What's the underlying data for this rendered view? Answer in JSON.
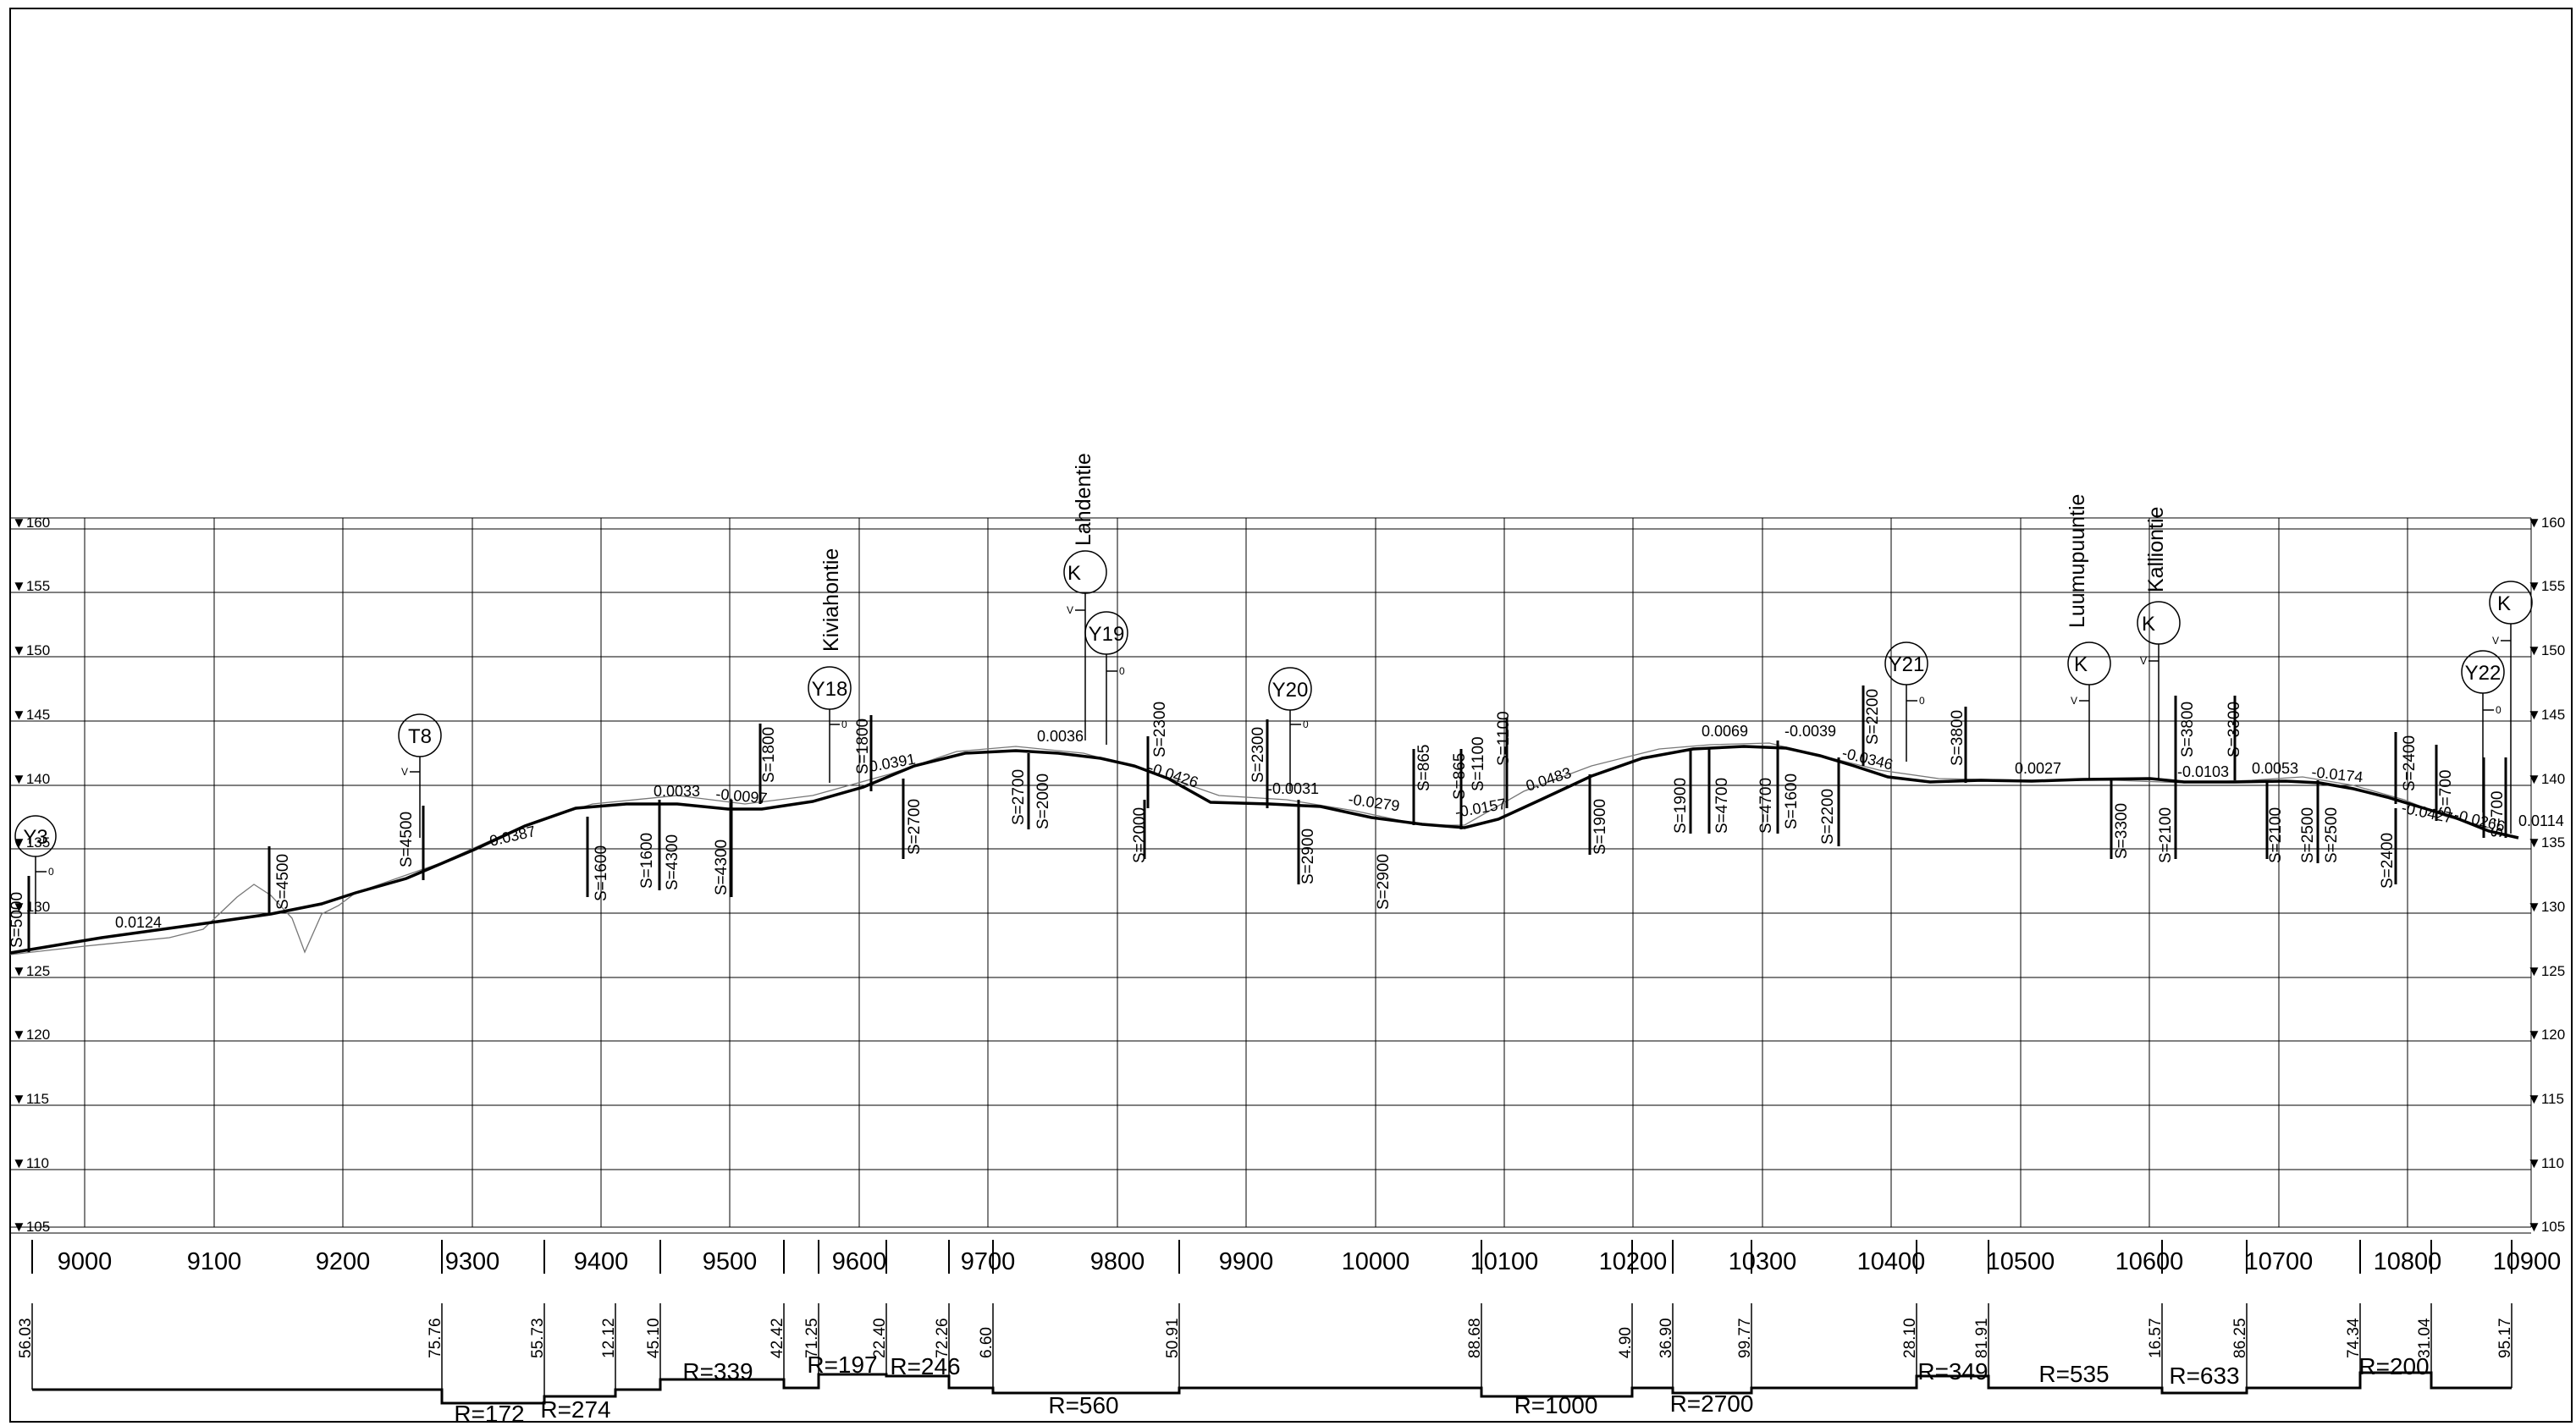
{
  "elevation_labels": [
    "160",
    "155",
    "150",
    "145",
    "140",
    "135",
    "130",
    "125",
    "120",
    "115",
    "110",
    "105"
  ],
  "station_labels": [
    "9000",
    "9100",
    "9200",
    "9300",
    "9400",
    "9500",
    "9600",
    "9700",
    "9800",
    "9900",
    "10000",
    "10100",
    "10200",
    "10300",
    "10400",
    "10500",
    "10600",
    "10700",
    "10800",
    "10900"
  ],
  "road_names": [
    "Lahdentie",
    "Kiviahontie",
    "Luumupuuntie",
    "Kalliontie"
  ],
  "markers": [
    {
      "label": "Y3",
      "sub": "0"
    },
    {
      "label": "T8",
      "sub": "V"
    },
    {
      "label": "Y18",
      "sub": "0"
    },
    {
      "label": "K",
      "sub": "V"
    },
    {
      "label": "Y19",
      "sub": "0"
    },
    {
      "label": "Y20",
      "sub": "0"
    },
    {
      "label": "Y21",
      "sub": "0"
    },
    {
      "label": "K",
      "sub": "V"
    },
    {
      "label": "K",
      "sub": "V"
    },
    {
      "label": "Y22",
      "sub": "0"
    },
    {
      "label": "K",
      "sub": "V"
    }
  ],
  "grades": [
    "0.0124",
    "0.0387",
    "0.0033",
    "-0.0097",
    "0.0391",
    "0.0036",
    "-0.0426",
    "-0.0031",
    "-0.0279",
    "-0.0157",
    "0.0483",
    "0.0069",
    "-0.0039",
    "-0.0346",
    "0.0027",
    "-0.0103",
    "0.0053",
    "-0.0174",
    "-0.0427",
    "-0.0266",
    "0.0114"
  ],
  "curve_labels": [
    "S=5000",
    "S=4500",
    "S=4500",
    "S=1600",
    "S=1600",
    "S=4300",
    "S=4300",
    "S=1800",
    "S=1800",
    "S=2700",
    "S=2700",
    "S=2000",
    "S=2000",
    "S=2300",
    "S=2300",
    "S=2900",
    "S=2900",
    "S=865",
    "S=865",
    "S=1100",
    "S=1100",
    "S=1900",
    "S=1900",
    "S=4700",
    "S=4700",
    "S=1600",
    "S=2200",
    "S=2200",
    "S=3800",
    "S=3300",
    "S=3800",
    "S=3300",
    "S=2100",
    "S=2100",
    "S=2500",
    "S=2500",
    "S=2400",
    "S=2400",
    "S=700",
    "S=700"
  ],
  "chainage_labels": [
    "56.03",
    "75.76",
    "55.73",
    "12.12",
    "45.10",
    "42.42",
    "71.25",
    "22.40",
    "72.26",
    "6.60",
    "50.91",
    "88.68",
    "4.90",
    "36.90",
    "99.77",
    "28.10",
    "81.91",
    "16.57",
    "86.25",
    "74.34",
    "31.04",
    "95.17"
  ],
  "radius_labels": [
    "R=172",
    "R=274",
    "R=339",
    "R=197",
    "R=246",
    "R=560",
    "R=1000",
    "R=2700",
    "R=349",
    "R=535",
    "R=633",
    "R=200"
  ]
}
